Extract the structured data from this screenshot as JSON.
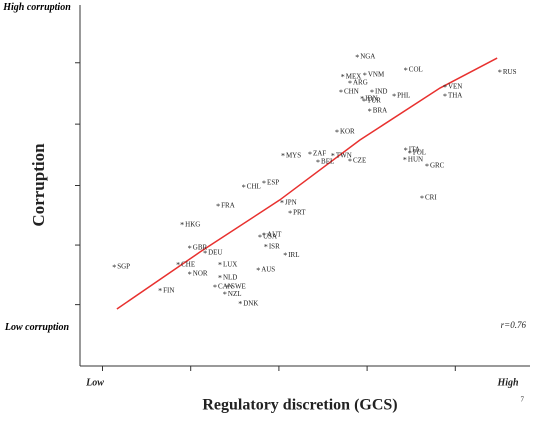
{
  "chart_data": {
    "type": "scatter",
    "ylabel": "Corruption",
    "xlabel": "Regulatory discretion (GCS)",
    "x_low": "Low",
    "x_high": "High",
    "y_high": "High corruption",
    "y_low": "Low corruption",
    "annotation": "r=0.76",
    "page_number": "7",
    "xlim": [
      0,
      100
    ],
    "ylim": [
      0,
      100
    ],
    "xticks": [
      5,
      24.6,
      44.2,
      63.8,
      83.4
    ],
    "yticks": [
      17,
      33.5,
      50,
      67,
      84
    ],
    "point_color": "#333333",
    "points": {
      "labels": [
        "SGP",
        "FIN",
        "HKG",
        "GBR",
        "CHE",
        "DEU",
        "NOR",
        "NLD",
        "LUX",
        "CAN",
        "NZL",
        "SWE",
        "DNK",
        "AUS",
        "USA",
        "AUT",
        "ISR",
        "IRL",
        "FRA",
        "CHL",
        "ESP",
        "JPN",
        "PRT",
        "MYS",
        "ZAF",
        "BEL",
        "TWN",
        "CZE",
        "KOR",
        "NGA",
        "MEX",
        "ARG",
        "VNM",
        "CHN",
        "IDN",
        "TUR",
        "IND",
        "BRA",
        "PHL",
        "COL",
        "ITA",
        "POL",
        "HUN",
        "GRC",
        "CRI",
        "VEN",
        "THA",
        "RUS"
      ],
      "x": [
        7.6,
        17.8,
        22.7,
        24.4,
        21.8,
        27.8,
        24.4,
        31.1,
        31.1,
        30.0,
        32.2,
        32.9,
        35.6,
        39.6,
        40.0,
        40.9,
        41.3,
        45.6,
        30.7,
        36.4,
        40.9,
        44.9,
        46.7,
        45.1,
        51.1,
        52.9,
        56.2,
        60.0,
        57.1,
        61.6,
        58.4,
        60.0,
        63.3,
        58.0,
        62.7,
        63.1,
        64.9,
        64.4,
        69.8,
        72.4,
        72.4,
        73.3,
        72.2,
        77.1,
        76.0,
        81.1,
        81.1,
        93.3
      ],
      "y": [
        27.4,
        20.8,
        39.1,
        32.7,
        28.0,
        31.3,
        25.5,
        24.4,
        28.0,
        21.9,
        19.9,
        21.9,
        17.2,
        26.6,
        35.7,
        36.3,
        33.0,
        30.7,
        44.3,
        49.6,
        50.7,
        45.2,
        42.4,
        58.2,
        58.7,
        56.5,
        58.2,
        56.8,
        64.8,
        85.6,
        80.1,
        78.4,
        80.6,
        75.9,
        74.0,
        73.4,
        75.9,
        70.6,
        74.8,
        82.0,
        59.8,
        59.0,
        57.1,
        55.4,
        46.5,
        77.3,
        74.8,
        81.4
      ]
    },
    "fit": {
      "color": "#e8312f",
      "x": [
        8.2,
        26.7,
        44.4,
        62.2,
        80.0,
        92.7
      ],
      "y": [
        15.8,
        31.6,
        46.0,
        62.6,
        77.0,
        85.3
      ]
    }
  }
}
